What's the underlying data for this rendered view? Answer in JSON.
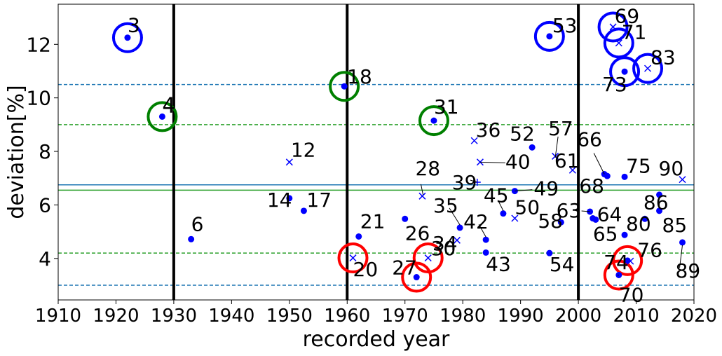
{
  "chart_data": {
    "type": "scatter",
    "xlabel": "recorded year",
    "ylabel": "deviation[%]",
    "xlim": [
      1910,
      2020
    ],
    "ylim": [
      2.45,
      13.5
    ],
    "xticks": [
      1910,
      1920,
      1930,
      1940,
      1950,
      1960,
      1970,
      1980,
      1990,
      2000,
      2010,
      2020
    ],
    "yticks": [
      4,
      6,
      8,
      10,
      12
    ],
    "grid": false,
    "legend": "none",
    "vertical_lines": [
      1930,
      1960,
      2000
    ],
    "horizontal_lines": [
      {
        "y": 10.5,
        "style": "dashed",
        "color": "#1f77b4"
      },
      {
        "y": 9.0,
        "style": "dashed",
        "color": "#2ca02c"
      },
      {
        "y": 6.75,
        "style": "solid",
        "color": "#1f77b4"
      },
      {
        "y": 6.55,
        "style": "solid",
        "color": "#2ca02c"
      },
      {
        "y": 4.2,
        "style": "dashed",
        "color": "#2ca02c"
      },
      {
        "y": 3.0,
        "style": "dashed",
        "color": "#1f77b4"
      }
    ],
    "points": [
      {
        "id": "3",
        "x": 1922,
        "y": 12.25,
        "marker": "dot",
        "ring": "blue"
      },
      {
        "id": "4",
        "x": 1928,
        "y": 9.3,
        "marker": "dot",
        "ring": "green"
      },
      {
        "id": "6",
        "x": 1933,
        "y": 4.72,
        "marker": "dot"
      },
      {
        "id": "12",
        "x": 1950,
        "y": 7.6,
        "marker": "x"
      },
      {
        "id": "14",
        "x": 1950,
        "y": 6.25,
        "marker": "dot"
      },
      {
        "id": "17",
        "x": 1952.5,
        "y": 5.78,
        "marker": "dot"
      },
      {
        "id": "18",
        "x": 1959.5,
        "y": 10.43,
        "marker": "dot",
        "ring": "green"
      },
      {
        "id": "20",
        "x": 1961,
        "y": 4.02,
        "marker": "x",
        "ring": "red"
      },
      {
        "id": "21",
        "x": 1962,
        "y": 4.82,
        "marker": "dot"
      },
      {
        "id": "26",
        "x": 1970,
        "y": 5.48,
        "marker": "dot"
      },
      {
        "id": "27",
        "x": 1972,
        "y": 3.3,
        "marker": "dot",
        "ring": "red"
      },
      {
        "id": "28",
        "x": 1973,
        "y": 6.33,
        "marker": "x"
      },
      {
        "id": "30",
        "x": 1974,
        "y": 4.02,
        "marker": "x",
        "ring": "red"
      },
      {
        "id": "31",
        "x": 1975,
        "y": 9.15,
        "marker": "dot",
        "ring": "green"
      },
      {
        "id": "34",
        "x": 1979,
        "y": 4.68,
        "marker": "x"
      },
      {
        "id": "35",
        "x": 1979.5,
        "y": 5.15,
        "marker": "dot"
      },
      {
        "id": "36",
        "x": 1982,
        "y": 8.4,
        "marker": "x"
      },
      {
        "id": "39",
        "x": 1982.5,
        "y": 6.85,
        "marker": "plus"
      },
      {
        "id": "40",
        "x": 1983,
        "y": 7.6,
        "marker": "x"
      },
      {
        "id": "42",
        "x": 1984,
        "y": 4.7,
        "marker": "dot"
      },
      {
        "id": "43",
        "x": 1984,
        "y": 4.22,
        "marker": "dot"
      },
      {
        "id": "45",
        "x": 1987,
        "y": 5.68,
        "marker": "dot"
      },
      {
        "id": "49",
        "x": 1989,
        "y": 6.52,
        "marker": "dot"
      },
      {
        "id": "50",
        "x": 1989,
        "y": 5.5,
        "marker": "x"
      },
      {
        "id": "52",
        "x": 1992,
        "y": 8.15,
        "marker": "dot"
      },
      {
        "id": "53",
        "x": 1995,
        "y": 12.3,
        "marker": "dot",
        "ring": "blue"
      },
      {
        "id": "54",
        "x": 1995,
        "y": 4.2,
        "marker": "dot"
      },
      {
        "id": "57",
        "x": 1996,
        "y": 7.82,
        "marker": "x"
      },
      {
        "id": "58",
        "x": 1997,
        "y": 5.35,
        "marker": "dot"
      },
      {
        "id": "61",
        "x": 1999,
        "y": 7.3,
        "marker": "x"
      },
      {
        "id": "63",
        "x": 2002,
        "y": 5.75,
        "marker": "dot"
      },
      {
        "id": "64",
        "x": 2002.5,
        "y": 5.5,
        "marker": "dot"
      },
      {
        "id": "65",
        "x": 2003,
        "y": 5.45,
        "marker": "dot"
      },
      {
        "id": "66",
        "x": 2004.5,
        "y": 7.15,
        "marker": "dot"
      },
      {
        "id": "68",
        "x": 2005,
        "y": 7.08,
        "marker": "dot"
      },
      {
        "id": "69",
        "x": 2006,
        "y": 12.65,
        "marker": "x",
        "ring": "blue"
      },
      {
        "id": "70",
        "x": 2007,
        "y": 3.38,
        "marker": "dot",
        "ring": "red"
      },
      {
        "id": "71",
        "x": 2007,
        "y": 12.05,
        "marker": "x",
        "ring": "blue"
      },
      {
        "id": "73",
        "x": 2008,
        "y": 10.98,
        "marker": "dot",
        "ring": "blue"
      },
      {
        "id": "74",
        "x": 2008.5,
        "y": 3.92,
        "marker": "dot",
        "ring": "red"
      },
      {
        "id": "75",
        "x": 2008,
        "y": 7.05,
        "marker": "dot"
      },
      {
        "id": "76",
        "x": 2009,
        "y": 3.9,
        "marker": "x"
      },
      {
        "id": "80",
        "x": 2008,
        "y": 4.88,
        "marker": "dot"
      },
      {
        "id": "83",
        "x": 2012,
        "y": 11.1,
        "marker": "x",
        "ring": "blue"
      },
      {
        "id": "85",
        "x": 2014,
        "y": 5.78,
        "marker": "dot"
      },
      {
        "id": "86",
        "x": 2011.5,
        "y": 5.48,
        "marker": "dot"
      },
      {
        "id": "89",
        "x": 2018,
        "y": 4.6,
        "marker": "dot"
      },
      {
        "id": "90",
        "x": 2018,
        "y": 6.95,
        "marker": "x"
      },
      {
        "id": "",
        "x": 2014,
        "y": 6.38,
        "marker": "dot"
      }
    ]
  }
}
